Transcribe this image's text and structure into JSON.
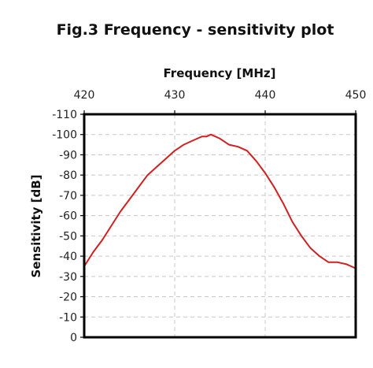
{
  "chart_data": {
    "type": "line",
    "title": "Fig.3 Frequency - sensitivity plot",
    "xlabel": "Frequency [MHz]",
    "ylabel": "Sensitivity [dB]",
    "xlim": [
      420,
      450
    ],
    "ylim": [
      0,
      -110
    ],
    "x_ticks": [
      420,
      430,
      440,
      450
    ],
    "x_tick_labels": [
      "420",
      "430",
      "440",
      "450"
    ],
    "y_ticks": [
      0,
      -10,
      -20,
      -30,
      -40,
      -50,
      -60,
      -70,
      -80,
      -90,
      -100,
      -110
    ],
    "y_tick_labels": [
      "0",
      "-10",
      "-20",
      "-30",
      "-40",
      "-50",
      "-60",
      "-70",
      "-80",
      "-90",
      "-100",
      "-110"
    ],
    "x_axis_position": "top",
    "grid": true,
    "series_color": "#d21f1f",
    "series": [
      {
        "x": [
          420.0,
          421.0,
          422.0,
          423.0,
          424.0,
          425.0,
          426.0,
          427.0,
          428.0,
          429.0,
          430.0,
          431.0,
          432.0,
          433.0,
          433.5,
          434.0,
          435.0,
          436.0,
          437.0,
          438.0,
          439.0,
          440.0,
          441.0,
          442.0,
          443.0,
          444.0,
          445.0,
          446.0,
          447.0,
          448.0,
          449.0,
          450.0
        ],
        "y": [
          -35,
          -42,
          -48,
          -55,
          -62,
          -68,
          -74,
          -80,
          -84,
          -88,
          -92,
          -95,
          -97,
          -99,
          -99,
          -100,
          -98,
          -95,
          -94,
          -92,
          -87,
          -81,
          -74,
          -66,
          -57,
          -50,
          -44,
          -40,
          -37,
          -37,
          -36,
          -34
        ]
      }
    ]
  }
}
